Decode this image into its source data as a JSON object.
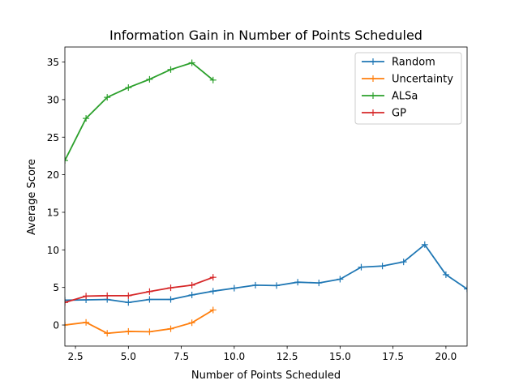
{
  "chart_data": {
    "type": "line",
    "title": "Information Gain in Number of Points Scheduled",
    "xlabel": "Number of Points Scheduled",
    "ylabel": "Average Score",
    "xlim": [
      2,
      21
    ],
    "ylim": [
      -2.8,
      37
    ],
    "xticks": [
      2.5,
      5.0,
      7.5,
      10.0,
      12.5,
      15.0,
      17.5,
      20.0
    ],
    "xtick_labels": [
      "2.5",
      "5.0",
      "7.5",
      "10.0",
      "12.5",
      "15.0",
      "17.5",
      "20.0"
    ],
    "yticks": [
      0,
      5,
      10,
      15,
      20,
      25,
      30,
      35
    ],
    "ytick_labels": [
      "0",
      "5",
      "10",
      "15",
      "20",
      "25",
      "30",
      "35"
    ],
    "grid": false,
    "legend_position": "top-right",
    "marker": "+",
    "series": [
      {
        "name": "Random",
        "color": "#1f77b4",
        "x": [
          2,
          3,
          4,
          5,
          6,
          7,
          8,
          9,
          10,
          11,
          12,
          13,
          14,
          15,
          16,
          17,
          18,
          19,
          20,
          21
        ],
        "y": [
          3.3,
          3.35,
          3.4,
          3.0,
          3.4,
          3.4,
          4.0,
          4.5,
          4.9,
          5.3,
          5.25,
          5.7,
          5.6,
          6.1,
          7.7,
          7.85,
          8.4,
          10.7,
          6.7,
          4.8
        ]
      },
      {
        "name": "Uncertainty",
        "color": "#ff7f0e",
        "x": [
          2,
          3,
          4,
          5,
          6,
          7,
          8,
          9
        ],
        "y": [
          0.0,
          0.35,
          -1.1,
          -0.85,
          -0.9,
          -0.5,
          0.3,
          2.0
        ]
      },
      {
        "name": "ALSa",
        "color": "#2ca02c",
        "x": [
          2,
          3,
          4,
          5,
          6,
          7,
          8,
          9
        ],
        "y": [
          21.9,
          27.5,
          30.3,
          31.6,
          32.7,
          34.0,
          34.9,
          32.6
        ]
      },
      {
        "name": "GP",
        "color": "#d62728",
        "x": [
          2,
          3,
          4,
          5,
          6,
          7,
          8,
          9
        ],
        "y": [
          3.0,
          3.85,
          3.9,
          3.9,
          4.45,
          4.95,
          5.3,
          6.35
        ]
      }
    ]
  }
}
